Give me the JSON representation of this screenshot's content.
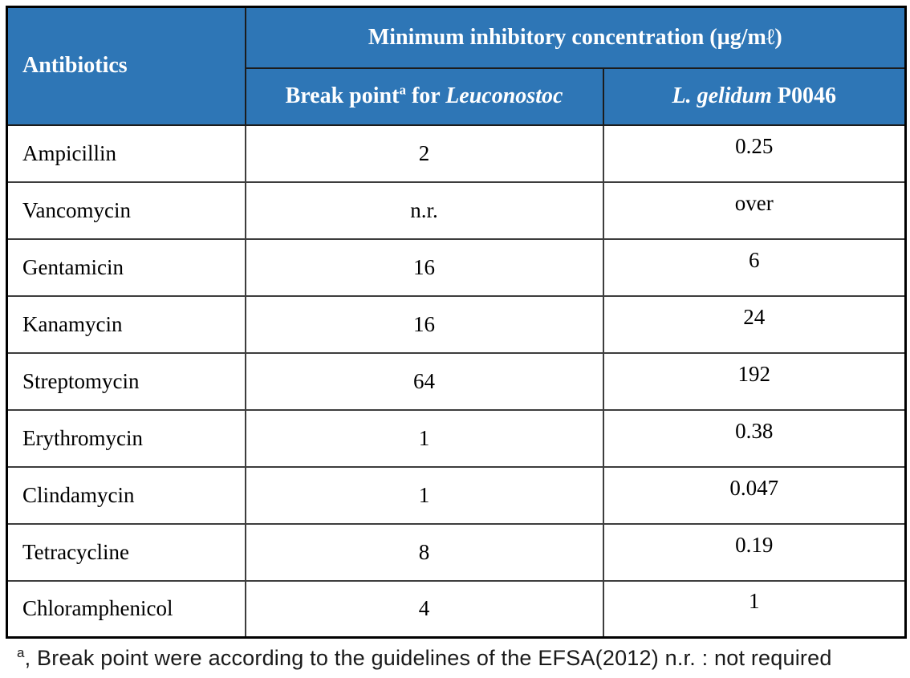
{
  "table": {
    "header": {
      "antibiotics_label": "Antibiotics",
      "mic_group_label": "Minimum inhibitory concentration (µg/mℓ)",
      "breakpoint_prefix": "Break point",
      "breakpoint_superscript": "a",
      "breakpoint_mid": " for ",
      "breakpoint_genus_italic": "Leuconostoc",
      "strain_italic": "L. gelidum",
      "strain_suffix": " P0046"
    },
    "rows": [
      {
        "antibiotic": "Ampicillin",
        "break_point": "2",
        "l_gelidum": "0.25"
      },
      {
        "antibiotic": "Vancomycin",
        "break_point": "n.r.",
        "l_gelidum": "over"
      },
      {
        "antibiotic": "Gentamicin",
        "break_point": "16",
        "l_gelidum": "6"
      },
      {
        "antibiotic": "Kanamycin",
        "break_point": "16",
        "l_gelidum": "24"
      },
      {
        "antibiotic": "Streptomycin",
        "break_point": "64",
        "l_gelidum": "192"
      },
      {
        "antibiotic": "Erythromycin",
        "break_point": "1",
        "l_gelidum": "0.38"
      },
      {
        "antibiotic": "Clindamycin",
        "break_point": "1",
        "l_gelidum": "0.047"
      },
      {
        "antibiotic": "Tetracycline",
        "break_point": "8",
        "l_gelidum": "0.19"
      },
      {
        "antibiotic": "Chloramphenicol",
        "break_point": "4",
        "l_gelidum": "1"
      }
    ],
    "footnote": {
      "superscript": "a",
      "text": ", Break point were according to the guidelines of the EFSA(2012) n.r. : not required"
    },
    "colors": {
      "header_bg": "#2E76B6",
      "header_text": "#FFFFFF",
      "body_text": "#000000",
      "outer_border": "#000000",
      "inner_border": "#3D3D3D"
    }
  }
}
